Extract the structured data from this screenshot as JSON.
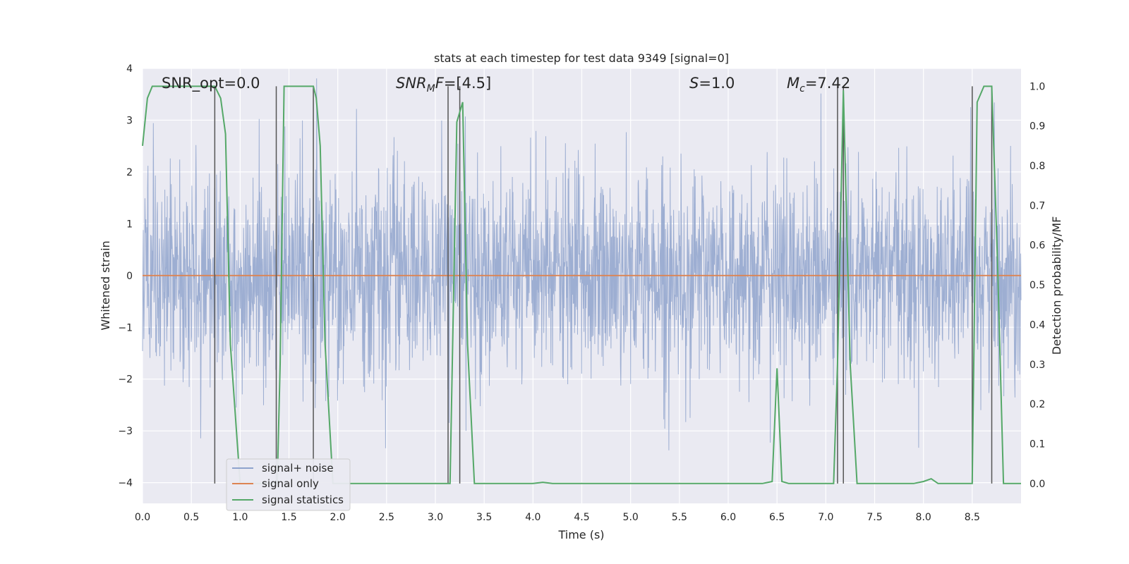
{
  "chart_data": {
    "type": "line",
    "title": "stats at each timestep for test data 9349 [signal=0]",
    "xlabel": "Time (s)",
    "ylabel": "Whitened strain",
    "y2label": "Detection probability/MF",
    "xlim": [
      0,
      9
    ],
    "ylim": [
      -4.4,
      4
    ],
    "y2lim": [
      -0.05,
      1.045
    ],
    "x_ticks": [
      "0.0",
      "0.5",
      "1.0",
      "1.5",
      "2.0",
      "2.5",
      "3.0",
      "3.5",
      "4.0",
      "4.5",
      "5.0",
      "5.5",
      "6.0",
      "6.5",
      "7.0",
      "7.5",
      "8.0",
      "8.5"
    ],
    "y_ticks": [
      "4",
      "3",
      "2",
      "1",
      "0",
      "−1",
      "−2",
      "−3",
      "−4"
    ],
    "y2_ticks": [
      "1.0",
      "0.9",
      "0.8",
      "0.7",
      "0.6",
      "0.5",
      "0.4",
      "0.3",
      "0.2",
      "0.1",
      "0.0"
    ],
    "grid": true,
    "legend_position": "lower-left",
    "colors": {
      "background": "#eaeaf2",
      "grid": "#ffffff",
      "noise": "#8fa3cd",
      "signal": "#dd8452",
      "stats": "#55a868",
      "markers": "#555555"
    },
    "annotations": [
      {
        "text": "SNR_opt=0.0",
        "x": 0.2
      },
      {
        "text": "SNR_MF=[4.5]",
        "x": 2.6
      },
      {
        "text": "S=1.0",
        "x": 5.6
      },
      {
        "text": "M_c=7.42",
        "x": 6.6
      }
    ],
    "series": [
      {
        "name": "signal+ noise",
        "kind": "noise",
        "duration": 9.0,
        "sigma": 1.0
      },
      {
        "name": "signal only",
        "kind": "constant",
        "value": 0
      },
      {
        "name": "signal statistics",
        "axis": "right",
        "x": [
          0.0,
          0.05,
          0.1,
          0.15,
          0.3,
          0.45,
          0.6,
          0.7,
          0.74,
          0.8,
          0.85,
          0.9,
          1.0,
          1.2,
          1.38,
          1.41,
          1.45,
          1.5,
          1.6,
          1.75,
          1.78,
          1.82,
          1.87,
          1.95,
          2.1,
          2.5,
          3.0,
          3.1,
          3.15,
          3.22,
          3.28,
          3.33,
          3.4,
          3.6,
          4.0,
          4.1,
          4.2,
          4.5,
          5.0,
          5.5,
          6.0,
          6.35,
          6.45,
          6.5,
          6.55,
          6.62,
          6.7,
          7.0,
          7.08,
          7.12,
          7.18,
          7.25,
          7.32,
          7.4,
          7.9,
          8.0,
          8.08,
          8.15,
          8.3,
          8.5,
          8.55,
          8.62,
          8.7,
          8.76,
          8.82,
          8.88,
          9.0
        ],
        "y": [
          0.85,
          0.97,
          1.0,
          1.0,
          1.0,
          1.0,
          1.0,
          1.0,
          1.0,
          0.97,
          0.88,
          0.35,
          0.0,
          0.0,
          0.0,
          0.3,
          1.0,
          1.0,
          1.0,
          1.0,
          0.97,
          0.85,
          0.35,
          0.0,
          0.0,
          0.0,
          0.0,
          0.0,
          0.0,
          0.91,
          0.96,
          0.35,
          0.0,
          0.0,
          0.0,
          0.003,
          0.0,
          0.0,
          0.0,
          0.0,
          0.0,
          0.0,
          0.005,
          0.29,
          0.005,
          0.0,
          0.0,
          0.0,
          0.0,
          0.3,
          0.99,
          0.3,
          0.0,
          0.0,
          0.0,
          0.005,
          0.012,
          0.0,
          0.0,
          0.0,
          0.96,
          1.0,
          1.0,
          0.55,
          0.0,
          0.0,
          0.0
        ]
      },
      {
        "name": "markers",
        "kind": "vlines",
        "y_from": 0.0,
        "y_to": 1.0,
        "x": [
          0.74,
          1.37,
          1.75,
          3.13,
          3.25,
          7.12,
          7.18,
          8.5,
          8.7
        ]
      }
    ]
  },
  "legend": {
    "items": [
      {
        "label": "signal+ noise",
        "color": "#8fa3cd"
      },
      {
        "label": "signal only",
        "color": "#dd8452"
      },
      {
        "label": "signal statistics",
        "color": "#55a868"
      }
    ]
  }
}
